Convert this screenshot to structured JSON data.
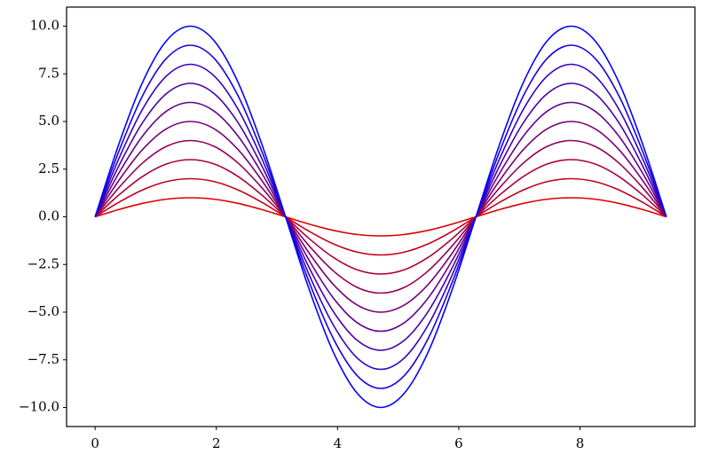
{
  "chart_data": {
    "type": "line",
    "x": [
      0,
      0.393,
      0.785,
      1.178,
      1.571,
      1.963,
      2.356,
      2.749,
      3.142,
      3.534,
      3.927,
      4.32,
      4.712,
      5.105,
      5.498,
      5.89,
      6.283,
      6.676,
      7.069,
      7.461,
      7.854,
      8.247,
      8.639,
      9.032,
      9.425
    ],
    "series": [
      {
        "color": "#dd0000",
        "values": [
          0,
          0.383,
          0.707,
          0.924,
          1,
          0.924,
          0.707,
          0.383,
          0,
          -0.383,
          -0.707,
          -0.924,
          -1,
          -0.924,
          -0.707,
          -0.383,
          0,
          0.383,
          0.707,
          0.924,
          1,
          0.924,
          0.707,
          0.383,
          0
        ]
      },
      {
        "color": "#c4001c",
        "values": [
          0,
          0.765,
          1.414,
          1.848,
          2,
          1.848,
          1.414,
          0.765,
          0,
          -0.765,
          -1.414,
          -1.848,
          -2,
          -1.848,
          -1.414,
          -0.765,
          0,
          0.765,
          1.414,
          1.848,
          2,
          1.848,
          1.414,
          0.765,
          0
        ]
      },
      {
        "color": "#ac0039",
        "values": [
          0,
          1.148,
          2.121,
          2.772,
          3,
          2.772,
          2.121,
          1.148,
          0,
          -1.148,
          -2.121,
          -2.772,
          -3,
          -2.772,
          -2.121,
          -1.148,
          0,
          1.148,
          2.121,
          2.772,
          3,
          2.772,
          2.121,
          1.148,
          0
        ]
      },
      {
        "color": "#930055",
        "values": [
          0,
          1.531,
          2.828,
          3.696,
          4,
          3.696,
          2.828,
          1.531,
          0,
          -1.531,
          -2.828,
          -3.696,
          -4,
          -3.696,
          -2.828,
          -1.531,
          0,
          1.531,
          2.828,
          3.696,
          4,
          3.696,
          2.828,
          1.531,
          0
        ]
      },
      {
        "color": "#7b0071",
        "values": [
          0,
          1.913,
          3.536,
          4.619,
          5,
          4.619,
          3.536,
          1.913,
          0,
          -1.913,
          -3.536,
          -4.619,
          -5,
          -4.619,
          -3.536,
          -1.913,
          0,
          1.913,
          3.536,
          4.619,
          5,
          4.619,
          3.536,
          1.913,
          0
        ]
      },
      {
        "color": "#62008e",
        "values": [
          0,
          2.296,
          4.243,
          5.543,
          6,
          5.543,
          4.243,
          2.296,
          0,
          -2.296,
          -4.243,
          -5.543,
          -6,
          -5.543,
          -4.243,
          -2.296,
          0,
          2.296,
          4.243,
          5.543,
          6,
          5.543,
          4.243,
          2.296,
          0
        ]
      },
      {
        "color": "#4a00aa",
        "values": [
          0,
          2.679,
          4.95,
          6.467,
          7,
          6.467,
          4.95,
          2.679,
          0,
          -2.679,
          -4.95,
          -6.467,
          -7,
          -6.467,
          -4.95,
          -2.679,
          0,
          2.679,
          4.95,
          6.467,
          7,
          6.467,
          4.95,
          2.679,
          0
        ]
      },
      {
        "color": "#3100c6",
        "values": [
          0,
          3.061,
          5.657,
          7.391,
          8,
          7.391,
          5.657,
          3.061,
          0,
          -3.061,
          -5.657,
          -7.391,
          -8,
          -7.391,
          -5.657,
          -3.061,
          0,
          3.061,
          5.657,
          7.391,
          8,
          7.391,
          5.657,
          3.061,
          0
        ]
      },
      {
        "color": "#1900e3",
        "values": [
          0,
          3.444,
          6.364,
          8.315,
          9,
          8.315,
          6.364,
          3.444,
          0,
          -3.444,
          -6.364,
          -8.315,
          -9,
          -8.315,
          -6.364,
          -3.444,
          0,
          3.444,
          6.364,
          8.315,
          9,
          8.315,
          6.364,
          3.444,
          0
        ]
      },
      {
        "color": "#0000ff",
        "values": [
          0,
          3.827,
          7.071,
          9.239,
          10,
          9.239,
          7.071,
          3.827,
          0,
          -3.827,
          -7.071,
          -9.239,
          -10,
          -9.239,
          -7.071,
          -3.827,
          0,
          3.827,
          7.071,
          9.239,
          10,
          9.239,
          7.071,
          3.827,
          0
        ]
      }
    ],
    "xlim": [
      -0.471,
      9.896
    ],
    "xticks": [
      0,
      2,
      4,
      6,
      8
    ],
    "ylim": [
      -11,
      11
    ],
    "yticks": [
      {
        "value": -10,
        "label": "−10.0"
      },
      {
        "value": -7.5,
        "label": "−7.5"
      },
      {
        "value": -5,
        "label": "−5.0"
      },
      {
        "value": -2.5,
        "label": "−2.5"
      },
      {
        "value": 0,
        "label": "0.0"
      },
      {
        "value": 2.5,
        "label": "2.5"
      },
      {
        "value": 5,
        "label": "5.0"
      },
      {
        "value": 7.5,
        "label": "7.5"
      },
      {
        "value": 10,
        "label": "10.0"
      }
    ],
    "grid": false
  }
}
